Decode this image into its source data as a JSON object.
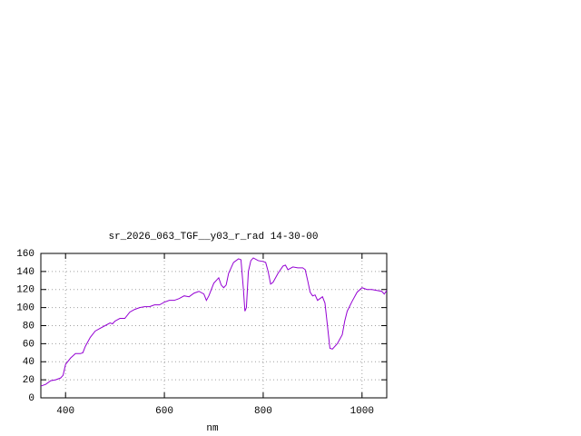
{
  "chart_data": {
    "type": "line",
    "title": "sr_2026_063_TGF__y03_r_rad 14-30-00",
    "x_label": "nm",
    "color": "#9400d3",
    "grid": true,
    "xlim": [
      350,
      1050
    ],
    "xticks": [
      400,
      600,
      800,
      1000
    ],
    "ylim": [
      0,
      160
    ],
    "yticks": [
      0,
      20,
      40,
      60,
      80,
      100,
      120,
      140,
      160
    ],
    "x": [
      350,
      360,
      370,
      380,
      390,
      395,
      400,
      410,
      420,
      430,
      435,
      440,
      450,
      460,
      470,
      480,
      490,
      495,
      500,
      510,
      520,
      530,
      540,
      550,
      560,
      570,
      580,
      590,
      600,
      610,
      620,
      630,
      640,
      650,
      660,
      670,
      680,
      685,
      690,
      700,
      710,
      715,
      720,
      725,
      730,
      740,
      750,
      755,
      760,
      763,
      766,
      770,
      775,
      780,
      790,
      800,
      805,
      810,
      815,
      820,
      830,
      840,
      845,
      850,
      860,
      870,
      880,
      885,
      890,
      895,
      900,
      905,
      910,
      920,
      925,
      930,
      935,
      940,
      950,
      960,
      965,
      970,
      980,
      990,
      1000,
      1010,
      1020,
      1030,
      1040,
      1045,
      1050
    ],
    "values": [
      13,
      15,
      19,
      20,
      22,
      25,
      37,
      44,
      49,
      49,
      50,
      57,
      67,
      74,
      77,
      80,
      83,
      82,
      85,
      88,
      88,
      95,
      98,
      100,
      101,
      101,
      103,
      103,
      106,
      108,
      108,
      110,
      113,
      112,
      116,
      118,
      115,
      108,
      113,
      127,
      133,
      125,
      122,
      125,
      138,
      150,
      154,
      153,
      120,
      96,
      100,
      140,
      152,
      155,
      152,
      151,
      150,
      140,
      126,
      128,
      138,
      146,
      147,
      142,
      145,
      144,
      144,
      142,
      130,
      117,
      113,
      114,
      108,
      112,
      105,
      80,
      55,
      54,
      60,
      70,
      85,
      96,
      107,
      117,
      122,
      120,
      120,
      119,
      118,
      115,
      119
    ]
  }
}
